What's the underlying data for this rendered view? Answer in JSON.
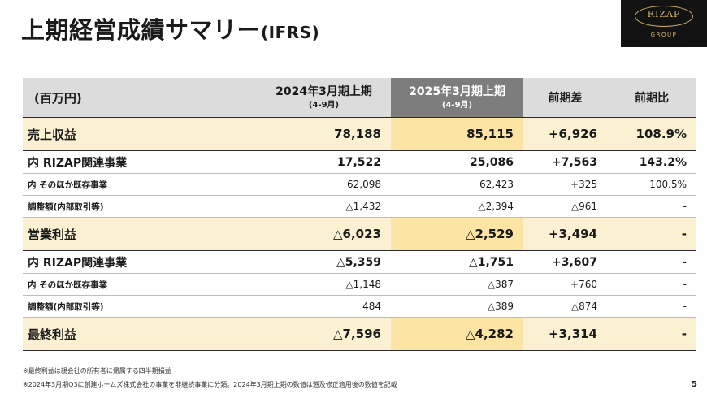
{
  "title": {
    "main": "上期経営成績サマリー",
    "suffix": "(IFRS)"
  },
  "logo": {
    "word": "RIZAP",
    "group": "GROUP"
  },
  "table": {
    "unit": "(百万円)",
    "col1": {
      "main": "2024年3月期上期",
      "sub": "(4-9月)"
    },
    "col2": {
      "main": "2025年3月期上期",
      "sub": "(4-9月)"
    },
    "col3": "前期差",
    "col4": "前期比",
    "rows": [
      {
        "label": "売上収益",
        "v1": "78,188",
        "v2": "85,115",
        "diff": "+6,926",
        "ratio": "108.9%"
      },
      {
        "label": "内 RIZAP関連事業",
        "v1": "17,522",
        "v2": "25,086",
        "diff": "+7,563",
        "ratio": "143.2%"
      },
      {
        "label": "内 そのほか既存事業",
        "v1": "62,098",
        "v2": "62,423",
        "diff": "+325",
        "ratio": "100.5%"
      },
      {
        "label": "調整額(内部取引等)",
        "v1": "△1,432",
        "v2": "△2,394",
        "diff": "△961",
        "ratio": "-"
      },
      {
        "label": "営業利益",
        "v1": "△6,023",
        "v2": "△2,529",
        "diff": "+3,494",
        "ratio": "-"
      },
      {
        "label": "内 RIZAP関連事業",
        "v1": "△5,359",
        "v2": "△1,751",
        "diff": "+3,607",
        "ratio": "-"
      },
      {
        "label": "内 そのほか既存事業",
        "v1": "△1,148",
        "v2": "△387",
        "diff": "+760",
        "ratio": "-"
      },
      {
        "label": "調整額(内部取引等)",
        "v1": "484",
        "v2": "△389",
        "diff": "△874",
        "ratio": "-"
      },
      {
        "label": "最終利益",
        "v1": "△7,596",
        "v2": "△4,282",
        "diff": "+3,314",
        "ratio": "-"
      }
    ]
  },
  "footnotes": [
    "※最終利益は親会社の所有者に帰属する四半期損益",
    "※2024年3月期Q3に創建ホームズ株式会社の事業を非継続事業に分類。2024年3月期上期の数値は遡及修正適用後の数値を記載"
  ],
  "page_number": "5"
}
